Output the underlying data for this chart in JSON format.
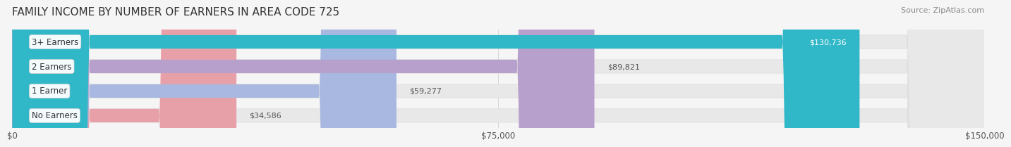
{
  "title": "FAMILY INCOME BY NUMBER OF EARNERS IN AREA CODE 725",
  "source": "Source: ZipAtlas.com",
  "categories": [
    "No Earners",
    "1 Earner",
    "2 Earners",
    "3+ Earners"
  ],
  "values": [
    34586,
    59277,
    89821,
    130736
  ],
  "bar_colors": [
    "#e8a0a8",
    "#a8b8e0",
    "#b8a0cc",
    "#30b8c8"
  ],
  "bar_bg_color": "#eeeeee",
  "label_colors": [
    "#555555",
    "#555555",
    "#555555",
    "#ffffff"
  ],
  "xlim": [
    0,
    150000
  ],
  "xticks": [
    0,
    75000,
    150000
  ],
  "xtick_labels": [
    "$0",
    "$75,000",
    "$150,000"
  ],
  "background_color": "#f5f5f5",
  "title_fontsize": 11,
  "source_fontsize": 8,
  "bar_height": 0.55,
  "bar_gap": 0.18
}
